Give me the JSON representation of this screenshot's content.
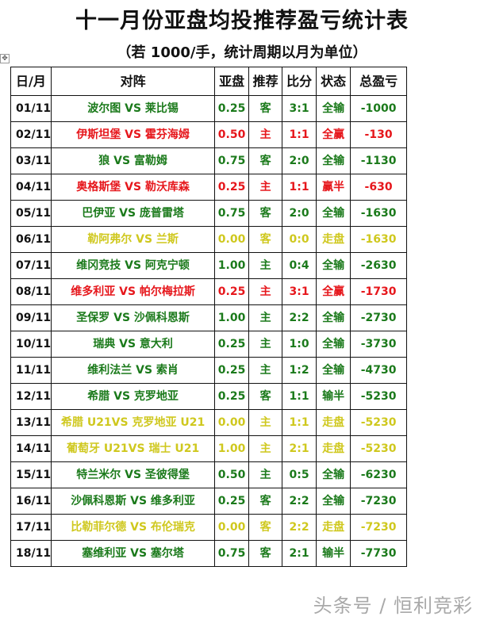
{
  "title": "十一月份亚盘均投推荐盈亏统计表",
  "subtitle": "（若 1000/手，统计周期以月为单位）",
  "colors": {
    "win": "#e6171c",
    "loss": "#1b7a1b",
    "push": "#cfc81e"
  },
  "headers": [
    "日/月",
    "对阵",
    "亚盘",
    "推荐",
    "比分",
    "状态",
    "总盈亏"
  ],
  "rows": [
    {
      "date": "01/11",
      "match": "波尔图 VS 莱比锡",
      "line": "0.25",
      "pick": "客",
      "score": "3:1",
      "status": "全输",
      "total": "-1000",
      "color": "green"
    },
    {
      "date": "02/11",
      "match": "伊斯坦堡 VS 霍芬海姆",
      "line": "0.50",
      "pick": "主",
      "score": "1:1",
      "status": "全赢",
      "total": "-130",
      "color": "red"
    },
    {
      "date": "03/11",
      "match": "狼 VS 富勒姆",
      "line": "0.75",
      "pick": "客",
      "score": "2:0",
      "status": "全输",
      "total": "-1130",
      "color": "green"
    },
    {
      "date": "04/11",
      "match": "奥格斯堡 VS 勒沃库森",
      "line": "0.25",
      "pick": "主",
      "score": "1:1",
      "status": "赢半",
      "total": "-630",
      "color": "red"
    },
    {
      "date": "05/11",
      "match": "巴伊亚 VS 庞普雷塔",
      "line": "0.75",
      "pick": "客",
      "score": "2:0",
      "status": "全输",
      "total": "-1630",
      "color": "green"
    },
    {
      "date": "06/11",
      "match": "勒阿弗尔 VS 兰斯",
      "line": "0.00",
      "pick": "客",
      "score": "0:0",
      "status": "走盘",
      "total": "-1630",
      "color": "yellow"
    },
    {
      "date": "07/11",
      "match": "维冈竞技 VS 阿克宁顿",
      "line": "1.00",
      "pick": "主",
      "score": "0:4",
      "status": "全输",
      "total": "-2630",
      "color": "green"
    },
    {
      "date": "08/11",
      "match": "维多利亚 VS 帕尔梅拉斯",
      "line": "0.25",
      "pick": "主",
      "score": "3:1",
      "status": "全赢",
      "total": "-1730",
      "color": "red"
    },
    {
      "date": "09/11",
      "match": "圣保罗 VS 沙佩科恩斯",
      "line": "1.00",
      "pick": "主",
      "score": "2:2",
      "status": "全输",
      "total": "-2730",
      "color": "green"
    },
    {
      "date": "10/11",
      "match": "瑞典 VS 意大利",
      "line": "0.25",
      "pick": "主",
      "score": "1:0",
      "status": "全输",
      "total": "-3730",
      "color": "green"
    },
    {
      "date": "11/11",
      "match": "维利法兰 VS 索肖",
      "line": "0.25",
      "pick": "主",
      "score": "1:2",
      "status": "全输",
      "total": "-4730",
      "color": "green"
    },
    {
      "date": "12/11",
      "match": "希腊 VS 克罗地亚",
      "line": "0.25",
      "pick": "客",
      "score": "1:1",
      "status": "输半",
      "total": "-5230",
      "color": "green"
    },
    {
      "date": "13/11",
      "match": "希腊 U21VS 克罗地亚 U21",
      "line": "0.00",
      "pick": "主",
      "score": "1:1",
      "status": "走盘",
      "total": "-5230",
      "color": "yellow"
    },
    {
      "date": "14/11",
      "match": "葡萄牙 U21VS 瑞士 U21",
      "line": "1.00",
      "pick": "主",
      "score": "2:1",
      "status": "走盘",
      "total": "-5230",
      "color": "yellow"
    },
    {
      "date": "15/11",
      "match": "特兰米尔 VS 圣彼得堡",
      "line": "0.50",
      "pick": "主",
      "score": "0:5",
      "status": "全输",
      "total": "-6230",
      "color": "green"
    },
    {
      "date": "16/11",
      "match": "沙佩科恩斯 VS 维多利亚",
      "line": "0.25",
      "pick": "客",
      "score": "2:2",
      "status": "全输",
      "total": "-7230",
      "color": "green"
    },
    {
      "date": "17/11",
      "match": "比勒菲尔德 VS 布伦瑞克",
      "line": "0.00",
      "pick": "客",
      "score": "2:2",
      "status": "走盘",
      "total": "-7230",
      "color": "yellow"
    },
    {
      "date": "18/11",
      "match": "塞维利亚 VS 塞尔塔",
      "line": "0.75",
      "pick": "客",
      "score": "2:1",
      "status": "输半",
      "total": "-7730",
      "color": "green"
    }
  ],
  "watermark": "头条号 / 恒利竞彩"
}
